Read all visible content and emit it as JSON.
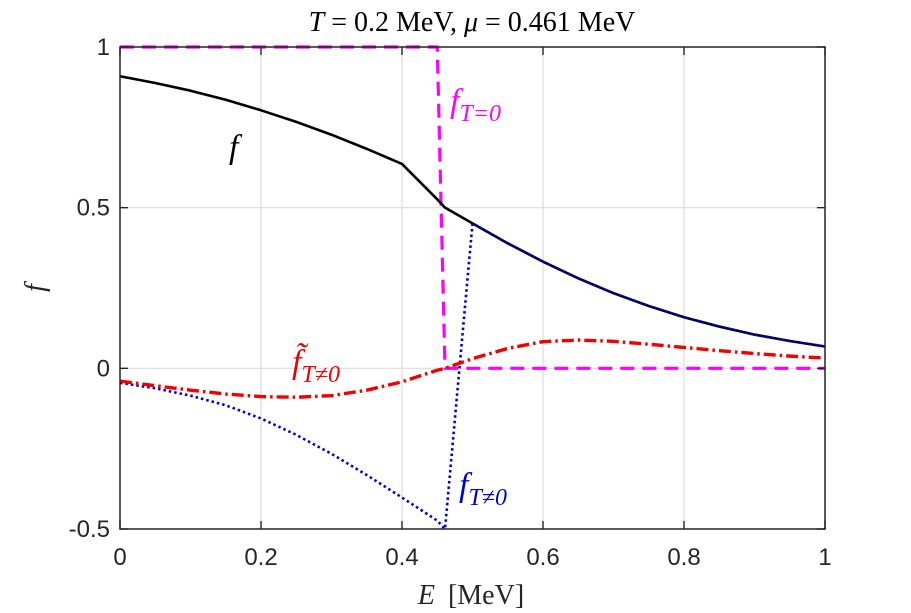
{
  "chart_data": {
    "type": "line",
    "title": "T = 0.2 MeV, μ = 0.461 MeV",
    "xlabel": "E [MeV]",
    "ylabel": "f",
    "xlim": [
      0,
      1
    ],
    "ylim": [
      -0.5,
      1
    ],
    "xticks": [
      "0",
      "0.2",
      "0.4",
      "0.6",
      "0.8",
      "1"
    ],
    "yticks": [
      "-0.5",
      "0",
      "0.5",
      "1"
    ],
    "grid": true,
    "temperature_MeV": 0.2,
    "mu_MeV": 0.461,
    "x": [
      0.0,
      0.05,
      0.1,
      0.15,
      0.2,
      0.25,
      0.3,
      0.35,
      0.4,
      0.45,
      0.461,
      0.5,
      0.55,
      0.6,
      0.65,
      0.7,
      0.75,
      0.8,
      0.85,
      0.9,
      0.95,
      1.0
    ],
    "series": [
      {
        "name": "f",
        "style": "solid",
        "color": "#000000",
        "values": [
          0.909,
          0.888,
          0.864,
          0.836,
          0.803,
          0.767,
          0.727,
          0.683,
          0.636,
          0.526,
          0.5,
          0.451,
          0.389,
          0.332,
          0.28,
          0.234,
          0.194,
          0.159,
          0.13,
          0.105,
          0.085,
          0.068
        ]
      },
      {
        "name": "f_{T=0}",
        "style": "dashed",
        "color": "#ff00ff",
        "values": [
          1,
          1,
          1,
          1,
          1,
          1,
          1,
          1,
          1,
          1,
          0,
          0,
          0,
          0,
          0,
          0,
          0,
          0,
          0,
          0,
          0,
          0
        ]
      },
      {
        "name": "f_{T≠0}",
        "style": "dotted",
        "color": "#0000cc",
        "values": [
          -0.045,
          -0.062,
          -0.085,
          -0.115,
          -0.156,
          -0.207,
          -0.266,
          -0.332,
          -0.402,
          -0.474,
          -0.5,
          0.451,
          0.389,
          0.332,
          0.28,
          0.234,
          0.194,
          0.159,
          0.13,
          0.105,
          0.085,
          0.068
        ]
      },
      {
        "name": "f̃_{T≠0}",
        "style": "dashdot",
        "color": "#ee0000",
        "values": [
          -0.04,
          -0.054,
          -0.068,
          -0.08,
          -0.088,
          -0.09,
          -0.085,
          -0.068,
          -0.042,
          -0.006,
          0.0,
          0.03,
          0.062,
          0.083,
          0.088,
          0.084,
          0.075,
          0.065,
          0.055,
          0.046,
          0.038,
          0.032
        ]
      }
    ],
    "annotations": [
      {
        "text": "f",
        "color": "#000000",
        "series": "f"
      },
      {
        "base": "f",
        "sub": "T=0",
        "color": "#ff00ff"
      },
      {
        "base": "f",
        "sub": "T≠0",
        "color": "#0000cc"
      },
      {
        "base": "f̃",
        "sub": "T≠0",
        "color": "#ee0000"
      }
    ]
  }
}
